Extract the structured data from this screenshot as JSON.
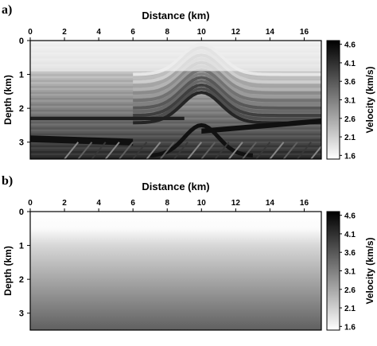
{
  "chart_data": [
    {
      "type": "heatmap",
      "panel_label": "a)",
      "title": "",
      "xlabel": "Distance (km)",
      "ylabel": "Depth (km)",
      "xlim": [
        0,
        17
      ],
      "ylim": [
        0,
        3.5
      ],
      "y_inverted": true,
      "x_axis_position": "top",
      "x_ticks": [
        "0",
        "2",
        "4",
        "6",
        "8",
        "10",
        "12",
        "14",
        "16"
      ],
      "y_ticks": [
        "0",
        "1",
        "2",
        "3"
      ],
      "colorbar": {
        "label": "Velocity (km/s)",
        "ticks": [
          "4.6",
          "4.1",
          "3.6",
          "3.1",
          "2.6",
          "2.1",
          "1.6"
        ],
        "range": [
          1.5,
          4.7
        ],
        "colors": [
          "#ffffff",
          "#000000"
        ]
      },
      "description_of_field": "layered velocity model with anticline/faults centred near x=10 km, low velocity near surface increasing with depth, high velocity layer near 2.3 km on left and dipping layers at bottom",
      "features": [
        {
          "kind": "surface_layer",
          "depth": [
            0.0,
            0.9
          ],
          "velocity": 1.7
        },
        {
          "kind": "high_velocity_band",
          "x": [
            0,
            9
          ],
          "depth": [
            2.25,
            2.35
          ],
          "velocity": 4.3
        },
        {
          "kind": "dipping_band",
          "x": [
            10,
            17
          ],
          "depth": [
            2.6,
            2.3
          ],
          "velocity": 4.5
        },
        {
          "kind": "deep_high_velocity",
          "x": [
            0,
            6
          ],
          "depth": [
            2.8,
            3.0
          ],
          "velocity": 4.5
        },
        {
          "kind": "anticline_crest",
          "x": 10,
          "depth": 2.3
        }
      ]
    },
    {
      "type": "heatmap",
      "panel_label": "b)",
      "title": "",
      "xlabel": "Distance (km)",
      "ylabel": "Depth (km)",
      "xlim": [
        0,
        17
      ],
      "ylim": [
        0,
        3.5
      ],
      "y_inverted": true,
      "x_axis_position": "top",
      "x_ticks": [
        "0",
        "2",
        "4",
        "6",
        "8",
        "10",
        "12",
        "14",
        "16"
      ],
      "y_ticks": [
        "0",
        "1",
        "2",
        "3"
      ],
      "colorbar": {
        "label": "Velocity (km/s)",
        "ticks": [
          "4.6",
          "4.1",
          "3.6",
          "3.1",
          "2.6",
          "2.1",
          "1.6"
        ],
        "range": [
          1.5,
          4.7
        ],
        "colors": [
          "#ffffff",
          "#000000"
        ]
      },
      "velocity_profile": {
        "depth": [
          0,
          0.5,
          1.0,
          2.0,
          3.0,
          3.5
        ],
        "velocity": [
          1.5,
          1.55,
          2.0,
          2.6,
          3.2,
          3.5
        ]
      }
    }
  ]
}
